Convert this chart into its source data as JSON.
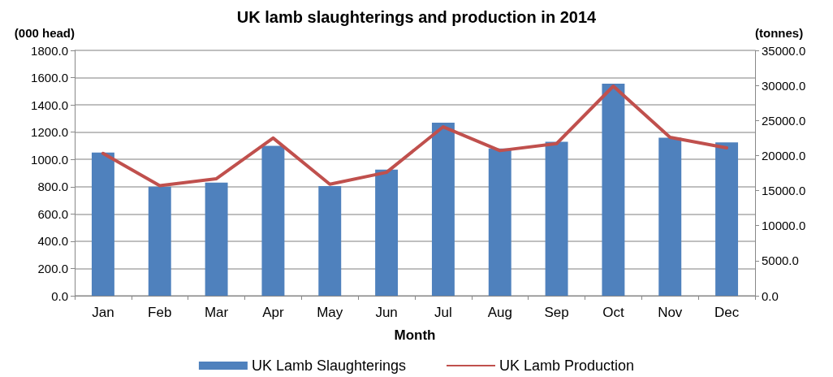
{
  "chart_data": {
    "type": "bar",
    "title": "UK lamb slaughterings and production in 2014",
    "xlabel": "Month",
    "ylabel": "(000 head)",
    "y2label": "(tonnes)",
    "categories": [
      "Jan",
      "Feb",
      "Mar",
      "Apr",
      "May",
      "Jun",
      "Jul",
      "Aug",
      "Sep",
      "Oct",
      "Nov",
      "Dec"
    ],
    "series": [
      {
        "name": "UK Lamb Slaughterings",
        "color": "#4f81bd",
        "values": [
          1050,
          800,
          830,
          1100,
          805,
          925,
          1270,
          1080,
          1130,
          1555,
          1160,
          1125
        ]
      },
      {
        "name": "UK Lamb Production",
        "type": "line",
        "axis": "y2",
        "color": "#c0504d",
        "values": [
          20300,
          15700,
          16700,
          22500,
          15900,
          17600,
          24100,
          20700,
          21700,
          29900,
          22600,
          21100
        ]
      }
    ],
    "ylim": [
      0,
      1800
    ],
    "yticks": [
      {
        "value": 0,
        "label": "0.0"
      },
      {
        "value": 200,
        "label": "200.0"
      },
      {
        "value": 400,
        "label": "400.0"
      },
      {
        "value": 600,
        "label": "600.0"
      },
      {
        "value": 800,
        "label": "800.0"
      },
      {
        "value": 1000,
        "label": "1000.0"
      },
      {
        "value": 1200,
        "label": "1200.0"
      },
      {
        "value": 1400,
        "label": "1400.0"
      },
      {
        "value": 1600,
        "label": "1600.0"
      },
      {
        "value": 1800,
        "label": "1800.0"
      }
    ],
    "y2lim": [
      0,
      35000
    ],
    "y2ticks": [
      {
        "value": 0,
        "label": "0.0"
      },
      {
        "value": 5000,
        "label": "5000.0"
      },
      {
        "value": 10000,
        "label": "10000.0"
      },
      {
        "value": 15000,
        "label": "15000.0"
      },
      {
        "value": 20000,
        "label": "20000.0"
      },
      {
        "value": 25000,
        "label": "25000.0"
      },
      {
        "value": 30000,
        "label": "30000.0"
      },
      {
        "value": 35000,
        "label": "35000.0"
      }
    ],
    "grid": "y",
    "legend": "bottom",
    "marker": "none",
    "line_style": "solid"
  }
}
